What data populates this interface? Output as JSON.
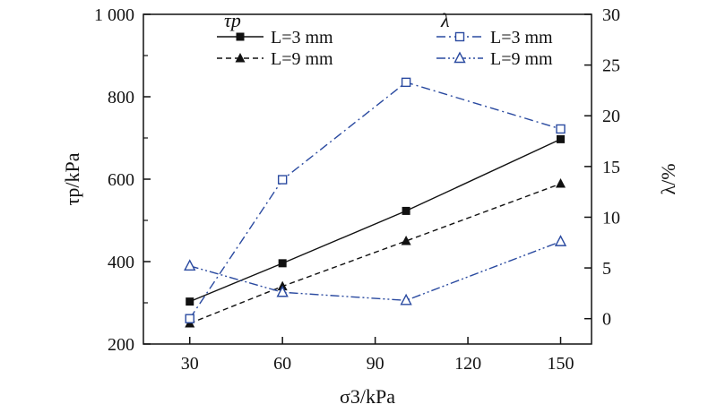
{
  "chart_data": {
    "type": "line",
    "x": [
      30,
      60,
      100,
      150
    ],
    "xlabel": "σ3/kPa",
    "xticks": [
      "30",
      "60",
      "90",
      "120",
      "150"
    ],
    "xlim": [
      15,
      160
    ],
    "left_axis": {
      "label": "τp/kPa",
      "ylim": [
        200,
        1000
      ],
      "ticks": [
        "200",
        "400",
        "600",
        "800",
        "1 000"
      ]
    },
    "right_axis": {
      "label": "λ/%",
      "ylim": [
        -2.5,
        30
      ],
      "ticks": [
        "0",
        "5",
        "10",
        "15",
        "20",
        "25",
        "30"
      ]
    },
    "legend": {
      "group_tau": "τp",
      "group_lambda": "λ"
    },
    "series": [
      {
        "name": "L=3 mm",
        "group": "tau",
        "axis": "left",
        "marker": "filled-square",
        "line": "solid",
        "color": "#111111",
        "values": [
          303,
          396,
          523,
          697
        ]
      },
      {
        "name": "L=9 mm",
        "group": "tau",
        "axis": "left",
        "marker": "filled-triangle",
        "line": "dashed",
        "color": "#111111",
        "values": [
          250,
          340,
          450,
          589
        ]
      },
      {
        "name": "L=3 mm",
        "group": "lambda",
        "axis": "right",
        "marker": "open-square",
        "line": "dashdot",
        "color": "#2a4aa0",
        "values": [
          0,
          13.7,
          23.3,
          18.7
        ]
      },
      {
        "name": "L=9 mm",
        "group": "lambda",
        "axis": "right",
        "marker": "open-triangle",
        "line": "dashdotdot",
        "color": "#2a4aa0",
        "values": [
          5.2,
          2.6,
          1.8,
          7.6
        ]
      }
    ]
  }
}
